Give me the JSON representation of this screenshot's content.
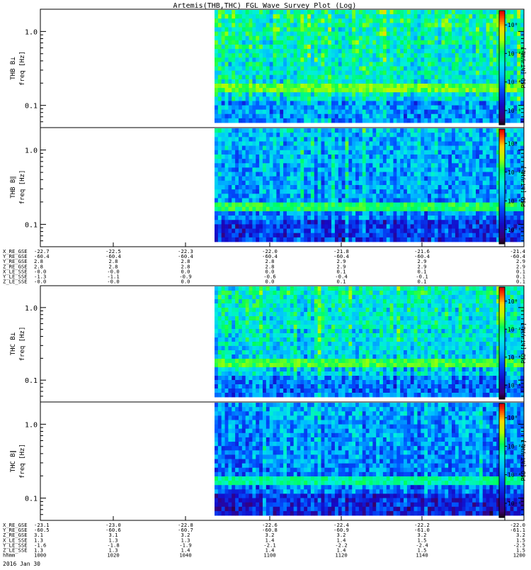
{
  "title": "Artemis(THB,THC) FGL Wave Survey Plot (Log)",
  "footer_date": "2016 Jan 30",
  "colorbar": {
    "ticks": [
      {
        "label": "10⁰",
        "log": 0
      },
      {
        "label": "10⁻²",
        "log": -2
      },
      {
        "label": "10⁻⁴",
        "log": -4
      },
      {
        "label": "10⁻⁶",
        "log": -6
      }
    ],
    "label": "PSD [nT²/Hz]",
    "log_range": [
      -7,
      1
    ]
  },
  "panels": [
    {
      "id": "thb-bperp",
      "ylabel_probe": "THB B⊥",
      "ylabel_unit": "freq [Hz]",
      "yticks": [
        {
          "v": 1.0,
          "label": "1.0"
        },
        {
          "v": 0.1,
          "label": "0.1"
        }
      ],
      "ylim": [
        0.05,
        2.0
      ],
      "seed": 11,
      "noise_base": -2.2,
      "band": -1.5
    },
    {
      "id": "thb-bpar",
      "ylabel_probe": "THB B∥",
      "ylabel_unit": "freq [Hz]",
      "yticks": [
        {
          "v": 1.0,
          "label": "1.0"
        },
        {
          "v": 0.1,
          "label": "0.1"
        }
      ],
      "ylim": [
        0.05,
        2.0
      ],
      "seed": 23,
      "noise_base": -3.3,
      "band": -2.0
    },
    {
      "id": "thc-bperp",
      "ylabel_probe": "THC B⊥",
      "ylabel_unit": "freq [Hz]",
      "yticks": [
        {
          "v": 1.0,
          "label": "1.0"
        },
        {
          "v": 0.1,
          "label": "0.1"
        }
      ],
      "ylim": [
        0.05,
        2.0
      ],
      "seed": 37,
      "noise_base": -2.6,
      "band": -1.8
    },
    {
      "id": "thc-bpar",
      "ylabel_probe": "THC B∥",
      "ylabel_unit": "freq [Hz]",
      "yticks": [
        {
          "v": 1.0,
          "label": "1.0"
        },
        {
          "v": 0.1,
          "label": "0.1"
        }
      ],
      "ylim": [
        0.05,
        2.0
      ],
      "seed": 51,
      "noise_base": -3.6,
      "band": -2.4
    }
  ],
  "ephemeris_thb": {
    "labels": [
      "X_RE_GSE",
      "Y_RE_GSE",
      "Y_RE_GSE",
      "Z_RE_GSE",
      "X_LE_SSE",
      "Y_LE_SSE",
      "Z_LE_SSE"
    ],
    "columns": [
      [
        "-22.7",
        "-60.4",
        "2.8",
        "2.8",
        "-0.0",
        "-1.3",
        "-0.0"
      ],
      [
        "-22.5",
        "-60.4",
        "2.8",
        "2.8",
        "-0.0",
        "-1.1",
        "-0.0"
      ],
      [
        "-22.3",
        "-60.4",
        "2.8",
        "2.8",
        "0.0",
        "-0.9",
        "0.0"
      ],
      [
        "-22.0",
        "-60.4",
        "2.8",
        "2.8",
        "0.0",
        "-0.6",
        "0.0"
      ],
      [
        "-21.8",
        "-60.4",
        "2.9",
        "2.9",
        "0.1",
        "-0.4",
        "0.1"
      ],
      [
        "-21.6",
        "-60.4",
        "2.9",
        "2.9",
        "0.1",
        "-0.1",
        "0.1"
      ],
      [
        "-21.4",
        "-60.4",
        "2.9",
        "2.9",
        "0.1",
        "0.1",
        "0.1"
      ]
    ]
  },
  "ephemeris_thc": {
    "labels": [
      "X_RE_GSE",
      "Y_RE_GSE",
      "Z_RE_GSE",
      "X_LE_SSE",
      "Y_LE_SSE",
      "Z_LE_SSE",
      "hhmm"
    ],
    "columns": [
      [
        "-23.1",
        "-60.5",
        "3.1",
        "1.3",
        "-1.6",
        "1.3",
        "1000"
      ],
      [
        "-23.0",
        "-60.6",
        "3.1",
        "1.3",
        "-1.8",
        "1.3",
        "1020"
      ],
      [
        "-22.8",
        "-60.7",
        "3.2",
        "1.3",
        "-1.9",
        "1.4",
        "1040"
      ],
      [
        "-22.6",
        "-60.8",
        "3.2",
        "1.4",
        "-2.1",
        "1.4",
        "1100"
      ],
      [
        "-22.4",
        "-60.9",
        "3.2",
        "1.4",
        "-2.2",
        "1.4",
        "1120"
      ],
      [
        "-22.2",
        "-61.0",
        "3.2",
        "1.5",
        "-2.4",
        "1.5",
        "1140"
      ],
      [
        "-22.0",
        "-61.1",
        "3.2",
        "1.5",
        "-2.5",
        "1.5",
        "1200"
      ]
    ]
  },
  "chart_data": {
    "type": "heatmap",
    "title": "Artemis(THB,THC) FGL Wave Survey Plot (Log)",
    "x_axis": {
      "label": "hhmm",
      "ticks": [
        "1000",
        "1020",
        "1040",
        "1100",
        "1120",
        "1140",
        "1200"
      ],
      "data_start": "1049"
    },
    "y_axis": {
      "label": "freq [Hz]",
      "scale": "log",
      "ylim": [
        0.05,
        2.0
      ],
      "ticks": [
        0.1,
        1.0
      ]
    },
    "z_axis": {
      "label": "PSD [nT²/Hz]",
      "scale": "log",
      "range": [
        1e-07,
        10
      ]
    },
    "series": [
      {
        "name": "THB B⊥"
      },
      {
        "name": "THB B∥"
      },
      {
        "name": "THC B⊥"
      },
      {
        "name": "THC B∥"
      }
    ]
  }
}
